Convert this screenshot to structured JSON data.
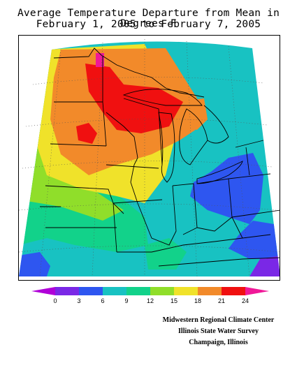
{
  "title_line1": "Average Temperature Departure from Mean in Degrees F",
  "title_line2": "February 1, 2005 to February 7, 2005",
  "legend": {
    "ticks": [
      "0",
      "3",
      "6",
      "9",
      "12",
      "15",
      "18",
      "21",
      "24"
    ],
    "colors": [
      "#b000d8",
      "#7a28e6",
      "#2e56f0",
      "#18c2c2",
      "#12d28a",
      "#90de2a",
      "#f0e22a",
      "#f28a2a",
      "#f01010",
      "#f01898"
    ]
  },
  "credits": {
    "line1": "Midwestern Regional Climate Center",
    "line2": "Illinois State Water Survey",
    "line3": "Champaign, Illinois"
  }
}
